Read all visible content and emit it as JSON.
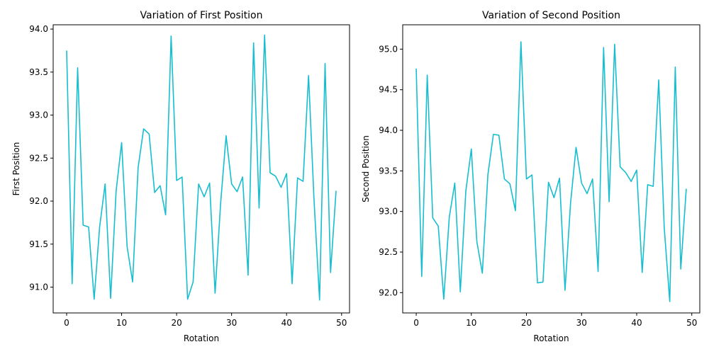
{
  "chart_data": [
    {
      "type": "line",
      "title": "Variation of First Position",
      "xlabel": "Rotation",
      "ylabel": "First Position",
      "xlim": [
        -2.45,
        51.45
      ],
      "ylim": [
        90.7,
        94.05
      ],
      "xticks": [
        0,
        10,
        20,
        30,
        40,
        50
      ],
      "yticks": [
        91.0,
        91.5,
        92.0,
        92.5,
        93.0,
        93.5,
        94.0
      ],
      "grid": false,
      "color": "#17becf",
      "x": [
        0,
        1,
        2,
        3,
        4,
        5,
        6,
        7,
        8,
        9,
        10,
        11,
        12,
        13,
        14,
        15,
        16,
        17,
        18,
        19,
        20,
        21,
        22,
        23,
        24,
        25,
        26,
        27,
        28,
        29,
        30,
        31,
        32,
        33,
        34,
        35,
        36,
        37,
        38,
        39,
        40,
        41,
        42,
        43,
        44,
        45,
        46,
        47,
        48,
        49
      ],
      "values": [
        93.75,
        91.04,
        93.55,
        91.72,
        91.7,
        90.86,
        91.7,
        92.2,
        90.87,
        92.12,
        92.68,
        91.47,
        91.06,
        92.39,
        92.84,
        92.78,
        92.1,
        92.18,
        91.84,
        93.92,
        92.24,
        92.28,
        90.86,
        91.06,
        92.2,
        92.05,
        92.21,
        90.93,
        91.97,
        92.76,
        92.2,
        92.11,
        92.28,
        91.14,
        93.84,
        91.92,
        93.93,
        92.33,
        92.29,
        92.16,
        92.32,
        91.04,
        92.27,
        92.23,
        93.46,
        92.0,
        90.85,
        93.6,
        91.17,
        92.12
      ]
    },
    {
      "type": "line",
      "title": "Variation of Second Position",
      "xlabel": "Rotation",
      "ylabel": "Second Position",
      "xlim": [
        -2.45,
        51.45
      ],
      "ylim": [
        91.75,
        95.3
      ],
      "xticks": [
        0,
        10,
        20,
        30,
        40,
        50
      ],
      "yticks": [
        92.0,
        92.5,
        93.0,
        93.5,
        94.0,
        94.5,
        95.0
      ],
      "grid": false,
      "color": "#17becf",
      "x": [
        0,
        1,
        2,
        3,
        4,
        5,
        6,
        7,
        8,
        9,
        10,
        11,
        12,
        13,
        14,
        15,
        16,
        17,
        18,
        19,
        20,
        21,
        22,
        23,
        24,
        25,
        26,
        27,
        28,
        29,
        30,
        31,
        32,
        33,
        34,
        35,
        36,
        37,
        38,
        39,
        40,
        41,
        42,
        43,
        44,
        45,
        46,
        47,
        48,
        49
      ],
      "values": [
        94.76,
        92.2,
        94.68,
        92.92,
        92.82,
        91.92,
        92.93,
        93.35,
        92.01,
        93.25,
        93.77,
        92.63,
        92.24,
        93.45,
        93.95,
        93.94,
        93.4,
        93.34,
        93.01,
        95.09,
        93.4,
        93.45,
        92.12,
        92.13,
        93.36,
        93.17,
        93.41,
        92.03,
        93.1,
        93.79,
        93.35,
        93.22,
        93.4,
        92.26,
        95.02,
        93.12,
        95.06,
        93.55,
        93.48,
        93.37,
        93.51,
        92.25,
        93.33,
        93.31,
        94.62,
        92.8,
        91.89,
        94.78,
        92.29,
        93.28
      ]
    }
  ]
}
